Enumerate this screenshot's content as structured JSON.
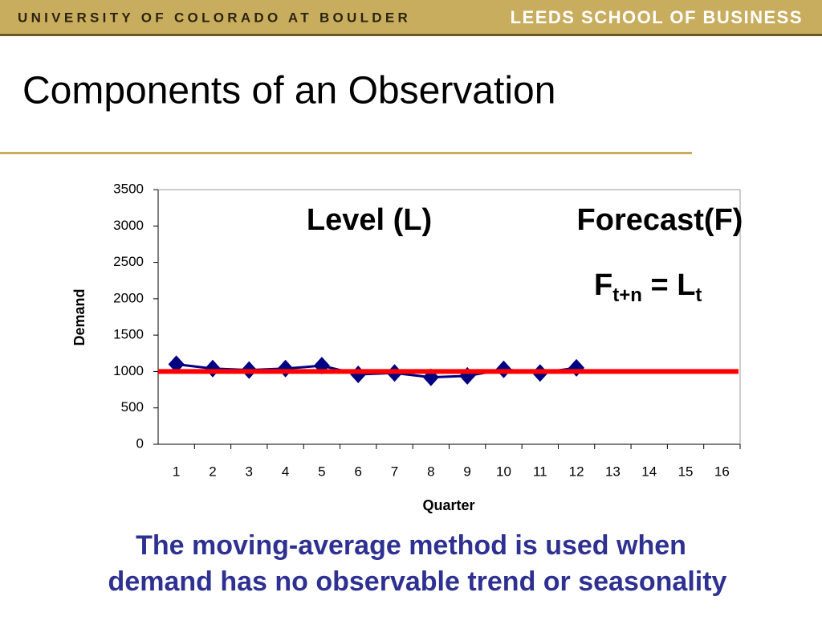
{
  "header": {
    "left": "UNIVERSITY OF COLORADO AT BOULDER",
    "right": "LEEDS SCHOOL OF BUSINESS"
  },
  "title": "Components of an Observation",
  "caption": [
    "The moving-average method is used when",
    "demand has no observable trend or seasonality"
  ],
  "chart_data": {
    "type": "line",
    "categories": [
      "1",
      "2",
      "3",
      "4",
      "5",
      "6",
      "7",
      "8",
      "9",
      "10",
      "11",
      "12",
      "13",
      "14",
      "15",
      "16"
    ],
    "series": [
      {
        "color": "#000080",
        "values": [
          1100,
          1040,
          1020,
          1040,
          1080,
          960,
          980,
          920,
          940,
          1030,
          980,
          1050,
          null,
          null,
          null,
          null
        ]
      }
    ],
    "reference_line": {
      "value": 1000,
      "color": "#ff0000"
    },
    "ylim": [
      0,
      3500
    ],
    "yticks": [
      0,
      500,
      1000,
      1500,
      2000,
      2500,
      3000,
      3500
    ],
    "ylabel": "Demand",
    "xlabel": "Quarter",
    "annotations": {
      "level": "Level (L)",
      "forecast": "Forecast(F)",
      "formula": [
        "F",
        "t+n",
        " = L",
        "t"
      ]
    }
  }
}
